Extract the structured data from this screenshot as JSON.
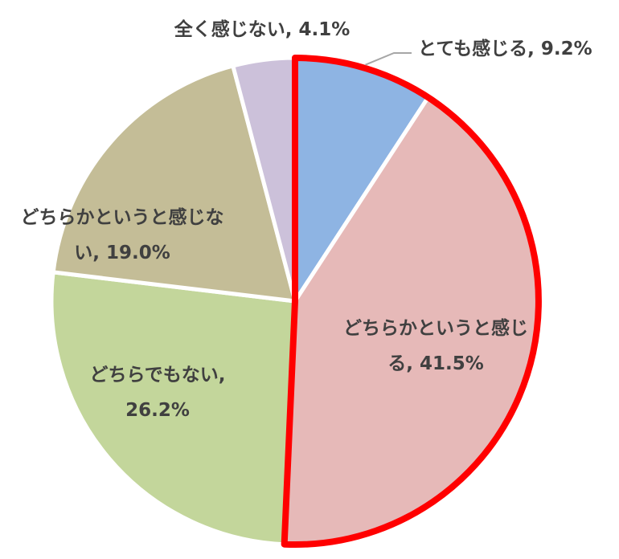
{
  "chart_data": {
    "type": "pie",
    "title": "",
    "start_angle_deg": 0,
    "direction": "clockwise",
    "slice_border": "#ffffff",
    "highlight": {
      "slices": [
        "とても感じる",
        "どちらかというと感じる"
      ],
      "outline_color": "#ff0000"
    },
    "slices": [
      {
        "name": "とても感じる",
        "value": 9.2,
        "color": "#8eb4e3",
        "label_lines": [
          "とても感じる, 9.2%"
        ]
      },
      {
        "name": "どちらかというと感じる",
        "value": 41.5,
        "color": "#e6b9b8",
        "label_lines": [
          "どちらかというと感じ",
          "る, 41.5%"
        ]
      },
      {
        "name": "どちらでもない",
        "value": 26.2,
        "color": "#c3d69b",
        "label_lines": [
          "どちらでもない,",
          "26.2%"
        ]
      },
      {
        "name": "どちらかというと感じない",
        "value": 19.0,
        "color": "#c4bd97",
        "label_lines": [
          "どちらかというと感じな",
          "い, 19.0%"
        ]
      },
      {
        "name": "全く感じない",
        "value": 4.1,
        "color": "#ccc1da",
        "label_lines": [
          "全く感じない, 4.1%"
        ]
      }
    ]
  }
}
